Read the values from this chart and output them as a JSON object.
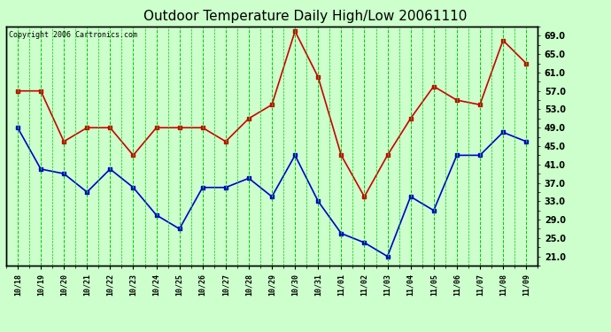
{
  "title": "Outdoor Temperature Daily High/Low 20061110",
  "copyright": "Copyright 2006 Cartronics.com",
  "dates": [
    "10/18",
    "10/19",
    "10/20",
    "10/21",
    "10/22",
    "10/23",
    "10/24",
    "10/25",
    "10/26",
    "10/27",
    "10/28",
    "10/29",
    "10/30",
    "10/31",
    "11/01",
    "11/02",
    "11/03",
    "11/04",
    "11/05",
    "11/06",
    "11/07",
    "11/08",
    "11/09"
  ],
  "highs": [
    57,
    57,
    46,
    49,
    49,
    43,
    49,
    49,
    49,
    46,
    51,
    54,
    70,
    60,
    43,
    34,
    43,
    51,
    58,
    55,
    54,
    68,
    63
  ],
  "lows": [
    49,
    40,
    39,
    35,
    40,
    36,
    30,
    27,
    36,
    36,
    38,
    34,
    43,
    33,
    26,
    24,
    21,
    34,
    31,
    43,
    43,
    48,
    46
  ],
  "high_color": "#cc0000",
  "low_color": "#0000cc",
  "background_color": "#ccffcc",
  "grid_color": "#00cc00",
  "border_color": "#000000",
  "title_fontsize": 11,
  "copyright_fontsize": 6,
  "ylabel_right_ticks": [
    21.0,
    25.0,
    29.0,
    33.0,
    37.0,
    41.0,
    45.0,
    49.0,
    53.0,
    57.0,
    61.0,
    65.0,
    69.0
  ],
  "ylim": [
    19,
    71
  ],
  "marker": "s",
  "markersize": 3,
  "linewidth": 1.2
}
